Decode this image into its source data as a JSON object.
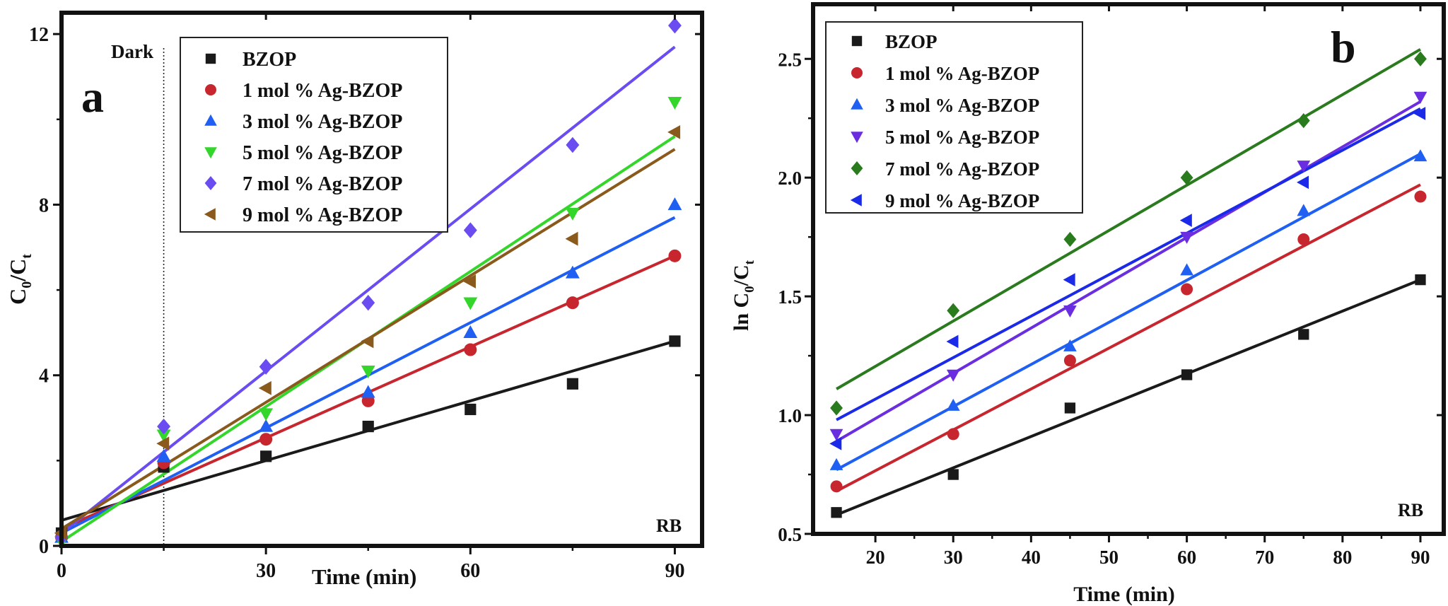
{
  "chart_data": [
    {
      "type": "scatter",
      "panel_label": "a",
      "title": "",
      "xlabel": "Time (min)",
      "ylabel_main": "C",
      "ylabel_sub1": "0",
      "ylabel_mid": "/C",
      "ylabel_sub2": "t",
      "xlim": [
        0,
        94
      ],
      "ylim": [
        0,
        12.5
      ],
      "xticks": [
        0,
        30,
        60,
        90
      ],
      "yticks": [
        0,
        4,
        8,
        12
      ],
      "dark_label": "Dark",
      "dark_x": 15,
      "corner_label": "RB",
      "legend_position": "top-right",
      "series": [
        {
          "name": "BZOP",
          "color": "#1a1a1a",
          "marker": "square",
          "x": [
            0,
            15,
            30,
            45,
            60,
            75,
            90
          ],
          "y": [
            0.3,
            1.85,
            2.1,
            2.8,
            3.2,
            3.8,
            4.8
          ],
          "fit": [
            [
              0,
              0.6
            ],
            [
              90,
              4.8
            ]
          ]
        },
        {
          "name": "1 mol % Ag-BZOP",
          "color": "#c8262e",
          "marker": "circle",
          "x": [
            0,
            15,
            30,
            45,
            60,
            75,
            90
          ],
          "y": [
            0.2,
            1.95,
            2.5,
            3.4,
            4.6,
            5.7,
            6.8
          ],
          "fit": [
            [
              0,
              0.4
            ],
            [
              90,
              6.8
            ]
          ]
        },
        {
          "name": "3 mol % Ag-BZOP",
          "color": "#1f5ff2",
          "marker": "triangle-up",
          "x": [
            0,
            15,
            30,
            45,
            60,
            75,
            90
          ],
          "y": [
            0.2,
            2.1,
            2.8,
            3.6,
            5.0,
            6.4,
            8.0
          ],
          "fit": [
            [
              0,
              0.3
            ],
            [
              90,
              7.7
            ]
          ]
        },
        {
          "name": "5 mol % Ag-BZOP",
          "color": "#35d62c",
          "marker": "triangle-down",
          "x": [
            0,
            15,
            30,
            45,
            60,
            75,
            90
          ],
          "y": [
            0.1,
            2.6,
            3.1,
            4.1,
            5.7,
            7.8,
            10.4
          ],
          "fit": [
            [
              0,
              0.1
            ],
            [
              90,
              9.6
            ]
          ]
        },
        {
          "name": "7 mol % Ag-BZOP",
          "color": "#6a4cf0",
          "marker": "diamond",
          "x": [
            0,
            15,
            30,
            45,
            60,
            75,
            90
          ],
          "y": [
            0.2,
            2.8,
            4.2,
            5.7,
            7.4,
            9.4,
            12.2
          ],
          "fit": [
            [
              0,
              0.3
            ],
            [
              90,
              11.7
            ]
          ]
        },
        {
          "name": "9 mol % Ag-BZOP",
          "color": "#8a5a1c",
          "marker": "triangle-left",
          "x": [
            0,
            15,
            30,
            45,
            60,
            75,
            90
          ],
          "y": [
            0.3,
            2.4,
            3.7,
            4.8,
            6.2,
            7.2,
            9.7
          ],
          "fit": [
            [
              0,
              0.4
            ],
            [
              90,
              9.3
            ]
          ]
        }
      ]
    },
    {
      "type": "scatter",
      "panel_label": "b",
      "title": "",
      "xlabel": "Time (min)",
      "ylabel_main": "ln C",
      "ylabel_sub1": "0",
      "ylabel_mid": "/C",
      "ylabel_sub2": "t",
      "xlim": [
        12,
        93
      ],
      "ylim": [
        0.5,
        2.73
      ],
      "xticks": [
        20,
        30,
        40,
        50,
        60,
        70,
        80,
        90
      ],
      "yticks": [
        0.5,
        1.0,
        1.5,
        2.0,
        2.5
      ],
      "ytick_labels": [
        "0.5",
        "1.0",
        "1.5",
        "2.0",
        "2.5"
      ],
      "corner_label": "RB",
      "legend_position": "top-left",
      "series": [
        {
          "name": "BZOP",
          "color": "#1a1a1a",
          "marker": "square",
          "x": [
            15,
            30,
            45,
            60,
            75,
            90
          ],
          "y": [
            0.59,
            0.75,
            1.03,
            1.17,
            1.34,
            1.57
          ],
          "fit": [
            [
              15,
              0.58
            ],
            [
              90,
              1.57
            ]
          ]
        },
        {
          "name": "1 mol % Ag-BZOP",
          "color": "#c8262e",
          "marker": "circle",
          "x": [
            15,
            30,
            45,
            60,
            75,
            90
          ],
          "y": [
            0.7,
            0.92,
            1.23,
            1.53,
            1.74,
            1.92
          ],
          "fit": [
            [
              15,
              0.68
            ],
            [
              90,
              1.97
            ]
          ]
        },
        {
          "name": "3 mol % Ag-BZOP",
          "color": "#1f5ff2",
          "marker": "triangle-up",
          "x": [
            15,
            30,
            45,
            60,
            75,
            90
          ],
          "y": [
            0.79,
            1.04,
            1.29,
            1.61,
            1.86,
            2.09
          ],
          "fit": [
            [
              15,
              0.77
            ],
            [
              90,
              2.1
            ]
          ]
        },
        {
          "name": "5 mol % Ag-BZOP",
          "color": "#6a2ee0",
          "marker": "triangle-down",
          "x": [
            15,
            30,
            45,
            60,
            75,
            90
          ],
          "y": [
            0.92,
            1.17,
            1.44,
            1.75,
            2.05,
            2.34
          ],
          "fit": [
            [
              15,
              0.89
            ],
            [
              90,
              2.32
            ]
          ]
        },
        {
          "name": "7 mol % Ag-BZOP",
          "color": "#2a7a1e",
          "marker": "diamond",
          "x": [
            15,
            30,
            45,
            60,
            75,
            90
          ],
          "y": [
            1.03,
            1.44,
            1.74,
            2.0,
            2.24,
            2.5
          ],
          "fit": [
            [
              15,
              1.11
            ],
            [
              90,
              2.54
            ]
          ]
        },
        {
          "name": "9 mol % Ag-BZOP",
          "color": "#1a2ae8",
          "marker": "triangle-left",
          "x": [
            15,
            30,
            45,
            60,
            75,
            90
          ],
          "y": [
            0.88,
            1.31,
            1.57,
            1.82,
            1.98,
            2.27
          ],
          "fit": [
            [
              15,
              0.98
            ],
            [
              90,
              2.29
            ]
          ]
        }
      ]
    }
  ]
}
